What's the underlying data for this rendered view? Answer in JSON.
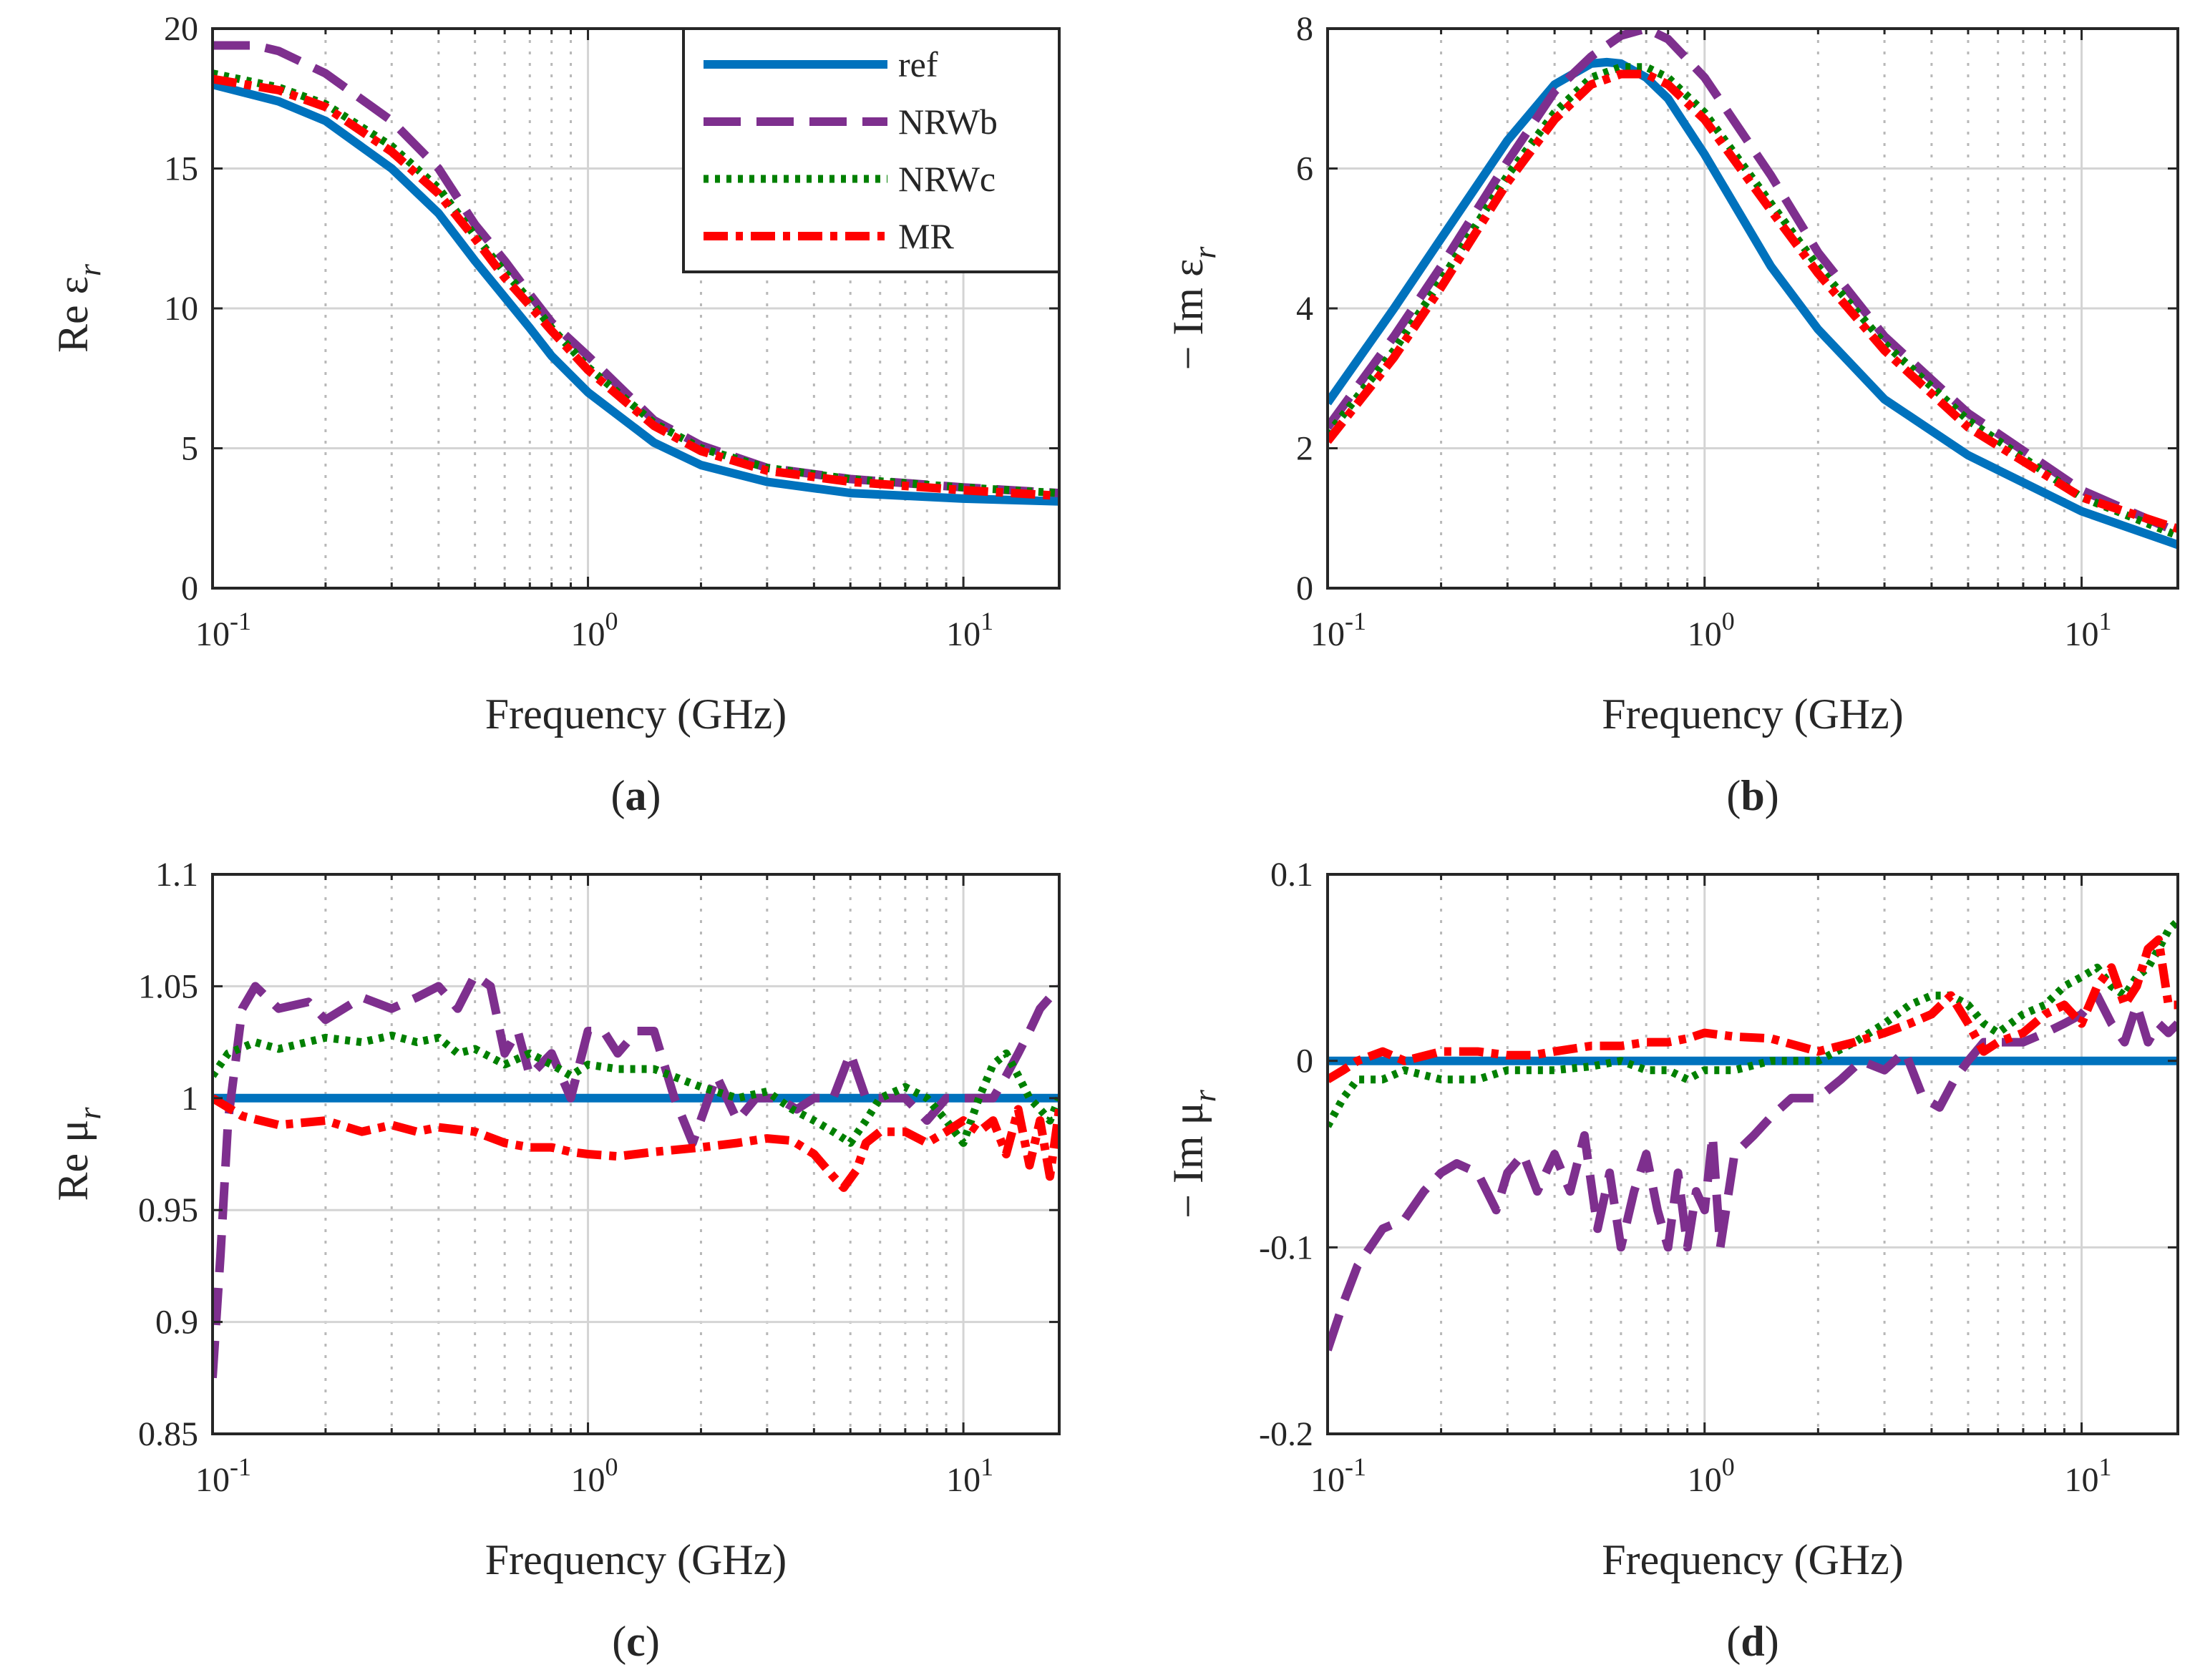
{
  "figure": {
    "xlabel": "Frequency (GHz)",
    "legend": [
      "ref",
      "NRWb",
      "NRWc",
      "MR"
    ],
    "colors": {
      "ref": "#0072BD",
      "NRWb": "#7E2F8E",
      "NRWc": "#008000",
      "MR": "#FF0000"
    }
  },
  "chart_data": [
    {
      "type": "line",
      "panel": "a",
      "ylabel": "Re ε",
      "ylabel_sub": "r",
      "xscale": "log",
      "xlim": [
        0.1,
        18
      ],
      "ylim": [
        0,
        20
      ],
      "yticks": [
        0,
        5,
        10,
        15,
        20
      ],
      "yticklabels": [
        "0",
        "5",
        "10",
        "15",
        "20"
      ],
      "xticks": [
        0.1,
        1,
        10
      ],
      "xtick_mantissa": [
        "10",
        "10",
        "10"
      ],
      "xtick_exponent": [
        "-1",
        "0",
        "1"
      ],
      "grid": true,
      "legend_position": "top-right",
      "series": [
        {
          "name": "ref",
          "x": [
            0.1,
            0.15,
            0.2,
            0.3,
            0.4,
            0.5,
            0.6,
            0.7,
            0.8,
            1,
            1.5,
            2,
            3,
            5,
            10,
            18
          ],
          "y": [
            18.0,
            17.4,
            16.7,
            15.0,
            13.4,
            11.7,
            10.4,
            9.3,
            8.3,
            7.0,
            5.2,
            4.4,
            3.8,
            3.4,
            3.2,
            3.1
          ]
        },
        {
          "name": "NRWb",
          "x": [
            0.1,
            0.13,
            0.15,
            0.2,
            0.3,
            0.4,
            0.5,
            0.6,
            0.7,
            0.8,
            1,
            1.5,
            2,
            3,
            5,
            10,
            18
          ],
          "y": [
            19.4,
            19.4,
            19.2,
            18.4,
            16.7,
            15.0,
            13.0,
            11.7,
            10.5,
            9.5,
            8.3,
            6.0,
            5.1,
            4.3,
            3.9,
            3.6,
            3.4
          ]
        },
        {
          "name": "NRWc",
          "x": [
            0.1,
            0.15,
            0.2,
            0.3,
            0.4,
            0.5,
            0.6,
            0.7,
            0.8,
            1,
            1.5,
            2,
            3,
            5,
            10,
            18
          ],
          "y": [
            18.4,
            17.9,
            17.3,
            15.8,
            14.3,
            12.6,
            11.3,
            10.3,
            9.3,
            7.9,
            5.9,
            5.0,
            4.3,
            3.9,
            3.6,
            3.4
          ]
        },
        {
          "name": "MR",
          "x": [
            0.1,
            0.15,
            0.2,
            0.3,
            0.4,
            0.5,
            0.6,
            0.7,
            0.8,
            1,
            1.5,
            2,
            3,
            5,
            10,
            18
          ],
          "y": [
            18.2,
            17.8,
            17.2,
            15.6,
            14.1,
            12.5,
            11.1,
            10.1,
            9.2,
            7.8,
            5.8,
            4.9,
            4.2,
            3.8,
            3.5,
            3.3
          ]
        }
      ]
    },
    {
      "type": "line",
      "panel": "b",
      "ylabel": "− Im ε",
      "ylabel_sub": "r",
      "xscale": "log",
      "xlim": [
        0.1,
        18
      ],
      "ylim": [
        0,
        8
      ],
      "yticks": [
        0,
        2,
        4,
        6,
        8
      ],
      "yticklabels": [
        "0",
        "2",
        "4",
        "6",
        "8"
      ],
      "xticks": [
        0.1,
        1,
        10
      ],
      "xtick_mantissa": [
        "10",
        "10",
        "10"
      ],
      "xtick_exponent": [
        "-1",
        "0",
        "1"
      ],
      "grid": true,
      "series": [
        {
          "name": "ref",
          "x": [
            0.1,
            0.15,
            0.2,
            0.3,
            0.4,
            0.5,
            0.55,
            0.6,
            0.7,
            0.8,
            1,
            1.5,
            2,
            3,
            5,
            10,
            18
          ],
          "y": [
            2.65,
            4.0,
            5.0,
            6.4,
            7.2,
            7.5,
            7.52,
            7.5,
            7.3,
            7.0,
            6.2,
            4.6,
            3.7,
            2.7,
            1.9,
            1.1,
            0.62
          ]
        },
        {
          "name": "NRWb",
          "x": [
            0.1,
            0.15,
            0.2,
            0.3,
            0.4,
            0.5,
            0.6,
            0.7,
            0.8,
            1,
            1.5,
            2,
            3,
            5,
            10,
            18
          ],
          "y": [
            2.3,
            3.6,
            4.6,
            6.1,
            7.1,
            7.6,
            7.9,
            8.0,
            7.85,
            7.3,
            5.9,
            4.8,
            3.6,
            2.5,
            1.4,
            0.8
          ]
        },
        {
          "name": "NRWc",
          "x": [
            0.1,
            0.15,
            0.2,
            0.3,
            0.4,
            0.5,
            0.6,
            0.7,
            0.8,
            1,
            1.5,
            2,
            3,
            5,
            10,
            18
          ],
          "y": [
            2.2,
            3.4,
            4.4,
            5.9,
            6.8,
            7.3,
            7.45,
            7.45,
            7.3,
            6.8,
            5.5,
            4.6,
            3.5,
            2.4,
            1.3,
            0.75
          ]
        },
        {
          "name": "MR",
          "x": [
            0.1,
            0.15,
            0.2,
            0.3,
            0.4,
            0.5,
            0.6,
            0.7,
            0.8,
            1,
            1.5,
            2,
            3,
            5,
            10,
            18
          ],
          "y": [
            2.1,
            3.3,
            4.3,
            5.8,
            6.7,
            7.2,
            7.35,
            7.35,
            7.2,
            6.7,
            5.4,
            4.5,
            3.4,
            2.3,
            1.3,
            0.85
          ]
        }
      ]
    },
    {
      "type": "line",
      "panel": "c",
      "ylabel": "Re μ",
      "ylabel_sub": "r",
      "xscale": "log",
      "xlim": [
        0.1,
        18
      ],
      "ylim": [
        0.85,
        1.1
      ],
      "yticks": [
        0.85,
        0.9,
        0.95,
        1,
        1.05,
        1.1
      ],
      "yticklabels": [
        "0.85",
        "0.9",
        "0.95",
        "1",
        "1.05",
        "1.1"
      ],
      "xticks": [
        0.1,
        1,
        10
      ],
      "xtick_mantissa": [
        "10",
        "10",
        "10"
      ],
      "xtick_exponent": [
        "-1",
        "0",
        "1"
      ],
      "grid": true,
      "series": [
        {
          "name": "ref",
          "x": [
            0.1,
            18
          ],
          "y": [
            1,
            1
          ]
        },
        {
          "name": "NRWb",
          "x": [
            0.1,
            0.105,
            0.11,
            0.12,
            0.13,
            0.15,
            0.18,
            0.2,
            0.25,
            0.3,
            0.35,
            0.4,
            0.45,
            0.5,
            0.55,
            0.6,
            0.65,
            0.7,
            0.8,
            0.9,
            1,
            1.1,
            1.2,
            1.35,
            1.5,
            1.7,
            1.9,
            2.2,
            2.5,
            2.8,
            3.2,
            3.6,
            4,
            4.5,
            5,
            5.5,
            6,
            7,
            8,
            9,
            10,
            11,
            12,
            13,
            14,
            15,
            16,
            17,
            18
          ],
          "y": [
            0.875,
            0.93,
            0.99,
            1.04,
            1.05,
            1.04,
            1.043,
            1.035,
            1.045,
            1.04,
            1.045,
            1.05,
            1.04,
            1.055,
            1.05,
            1.02,
            1.03,
            1.01,
            1.02,
            1.0,
            1.03,
            1.03,
            1.02,
            1.03,
            1.03,
            1.0,
            0.98,
            1.01,
            0.99,
            1.0,
            1.0,
            0.995,
            1.0,
            1.0,
            1.02,
            1.0,
            1.0,
            1.0,
            0.99,
            1.0,
            1.0,
            1.0,
            1.0,
            1.01,
            1.02,
            1.03,
            1.04,
            1.045,
            1.05
          ]
        },
        {
          "name": "NRWc",
          "x": [
            0.1,
            0.11,
            0.13,
            0.15,
            0.2,
            0.25,
            0.3,
            0.35,
            0.4,
            0.45,
            0.5,
            0.6,
            0.7,
            0.8,
            0.9,
            1,
            1.2,
            1.5,
            2,
            2.5,
            3,
            3.5,
            4,
            4.5,
            5,
            5.5,
            6,
            7,
            8,
            9,
            10,
            11,
            12,
            13,
            14,
            15,
            16,
            17,
            18
          ],
          "y": [
            1.01,
            1.02,
            1.025,
            1.022,
            1.027,
            1.025,
            1.028,
            1.025,
            1.027,
            1.02,
            1.022,
            1.015,
            1.02,
            1.015,
            1.01,
            1.015,
            1.013,
            1.013,
            1.005,
            1.0,
            1.003,
            0.995,
            0.99,
            0.985,
            0.98,
            0.99,
            1.0,
            1.005,
            1.0,
            0.99,
            0.98,
            1.0,
            1.015,
            1.02,
            1.01,
            1.0,
            0.995,
            0.99,
            1.0
          ]
        },
        {
          "name": "MR",
          "x": [
            0.1,
            0.12,
            0.15,
            0.2,
            0.25,
            0.3,
            0.35,
            0.4,
            0.5,
            0.6,
            0.7,
            0.8,
            0.9,
            1,
            1.2,
            1.5,
            2,
            2.5,
            3,
            3.5,
            4,
            4.5,
            4.8,
            5.2,
            5.5,
            6,
            7,
            8,
            9,
            10,
            11,
            12,
            13,
            14,
            15,
            16,
            17,
            18
          ],
          "y": [
            1.0,
            0.992,
            0.988,
            0.99,
            0.985,
            0.988,
            0.985,
            0.987,
            0.985,
            0.98,
            0.978,
            0.978,
            0.976,
            0.975,
            0.974,
            0.976,
            0.978,
            0.98,
            0.982,
            0.981,
            0.975,
            0.965,
            0.96,
            0.968,
            0.98,
            0.985,
            0.985,
            0.98,
            0.985,
            0.99,
            0.985,
            0.99,
            0.975,
            0.995,
            0.97,
            0.99,
            0.965,
            0.995
          ]
        }
      ]
    },
    {
      "type": "line",
      "panel": "d",
      "ylabel": "− Im μ",
      "ylabel_sub": "r",
      "xscale": "log",
      "xlim": [
        0.1,
        18
      ],
      "ylim": [
        -0.2,
        0.1
      ],
      "yticks": [
        -0.2,
        -0.1,
        0,
        0.1
      ],
      "yticklabels": [
        "-0.2",
        "-0.1",
        "0",
        "0.1"
      ],
      "xticks": [
        0.1,
        1,
        10
      ],
      "xtick_mantissa": [
        "10",
        "10",
        "10"
      ],
      "xtick_exponent": [
        "-1",
        "0",
        "1"
      ],
      "grid": true,
      "series": [
        {
          "name": "ref",
          "x": [
            0.1,
            18
          ],
          "y": [
            0,
            0
          ]
        },
        {
          "name": "NRWb",
          "x": [
            0.1,
            0.11,
            0.12,
            0.14,
            0.16,
            0.18,
            0.2,
            0.22,
            0.25,
            0.28,
            0.3,
            0.33,
            0.36,
            0.4,
            0.44,
            0.48,
            0.52,
            0.56,
            0.6,
            0.65,
            0.7,
            0.75,
            0.8,
            0.85,
            0.9,
            0.95,
            1,
            1.05,
            1.1,
            1.2,
            1.35,
            1.5,
            1.7,
            2,
            2.3,
            2.6,
            3,
            3.4,
            3.8,
            4.2,
            4.6,
            5,
            5.5,
            6,
            7,
            8,
            9,
            10,
            11,
            12,
            13,
            14,
            15,
            16,
            17,
            18
          ],
          "y": [
            -0.155,
            -0.13,
            -0.11,
            -0.09,
            -0.085,
            -0.07,
            -0.06,
            -0.055,
            -0.06,
            -0.08,
            -0.06,
            -0.05,
            -0.07,
            -0.05,
            -0.07,
            -0.04,
            -0.09,
            -0.06,
            -0.1,
            -0.07,
            -0.05,
            -0.08,
            -0.1,
            -0.06,
            -0.1,
            -0.07,
            -0.08,
            -0.04,
            -0.1,
            -0.05,
            -0.04,
            -0.03,
            -0.02,
            -0.02,
            -0.01,
            0,
            -0.005,
            0.005,
            -0.02,
            -0.025,
            -0.01,
            0,
            0.01,
            0.01,
            0.01,
            0.015,
            0.02,
            0.025,
            0.035,
            0.02,
            0.01,
            0.03,
            0.01,
            0.02,
            0.015,
            0.02
          ]
        },
        {
          "name": "NRWc",
          "x": [
            0.1,
            0.11,
            0.12,
            0.14,
            0.16,
            0.2,
            0.25,
            0.3,
            0.35,
            0.4,
            0.5,
            0.6,
            0.7,
            0.8,
            0.9,
            1,
            1.2,
            1.5,
            2,
            2.5,
            3,
            3.5,
            4,
            4.5,
            5,
            5.5,
            6,
            7,
            8,
            9,
            10,
            11,
            12,
            13,
            14,
            15,
            16,
            17,
            18
          ],
          "y": [
            -0.035,
            -0.02,
            -0.01,
            -0.01,
            -0.005,
            -0.01,
            -0.01,
            -0.005,
            -0.005,
            -0.005,
            -0.003,
            0,
            -0.005,
            -0.005,
            -0.01,
            -0.005,
            -0.005,
            0,
            0,
            0.01,
            0.02,
            0.03,
            0.035,
            0.035,
            0.03,
            0.02,
            0.015,
            0.025,
            0.03,
            0.04,
            0.045,
            0.05,
            0.04,
            0.035,
            0.045,
            0.05,
            0.06,
            0.07,
            0.075
          ]
        },
        {
          "name": "MR",
          "x": [
            0.1,
            0.11,
            0.12,
            0.14,
            0.16,
            0.2,
            0.25,
            0.3,
            0.35,
            0.4,
            0.5,
            0.6,
            0.7,
            0.8,
            0.9,
            1,
            1.2,
            1.5,
            2,
            2.5,
            3,
            3.5,
            4,
            4.5,
            5,
            5.5,
            6,
            7,
            8,
            9,
            10,
            11,
            12,
            13,
            14,
            15,
            16,
            17,
            18
          ],
          "y": [
            -0.01,
            -0.005,
            0,
            0.005,
            0,
            0.005,
            0.005,
            0.003,
            0.003,
            0.005,
            0.008,
            0.008,
            0.01,
            0.01,
            0.012,
            0.015,
            0.013,
            0.012,
            0.005,
            0.01,
            0.015,
            0.02,
            0.025,
            0.035,
            0.02,
            0.005,
            0.01,
            0.015,
            0.025,
            0.03,
            0.02,
            0.04,
            0.05,
            0.03,
            0.04,
            0.06,
            0.065,
            0.03,
            0.03
          ]
        }
      ]
    }
  ]
}
